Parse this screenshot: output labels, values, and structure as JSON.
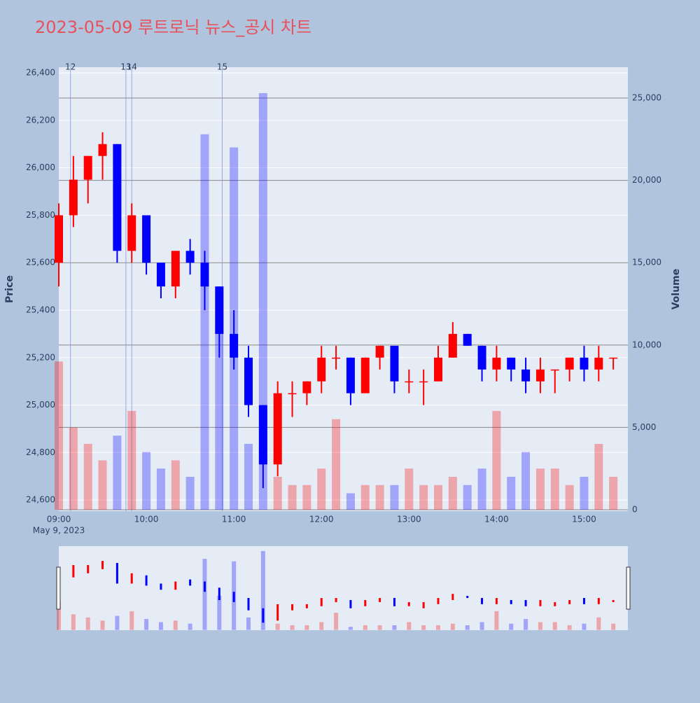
{
  "chart_data": {
    "type": "candlestick",
    "title": "2023-05-09 루트로닉 뉴스_공시 차트",
    "x": [
      "09:00",
      "09:10",
      "09:20",
      "09:30",
      "09:40",
      "09:50",
      "10:00",
      "10:10",
      "10:20",
      "10:30",
      "10:40",
      "10:50",
      "11:00",
      "11:10",
      "11:20",
      "11:30",
      "11:40",
      "11:50",
      "12:00",
      "12:10",
      "12:20",
      "12:30",
      "12:40",
      "12:50",
      "13:00",
      "13:10",
      "13:20",
      "13:30",
      "13:40",
      "13:50",
      "14:00",
      "14:10",
      "14:20",
      "14:30",
      "14:40",
      "14:50",
      "15:00",
      "15:10",
      "15:20"
    ],
    "open": [
      25600,
      25800,
      25950,
      26050,
      26100,
      25650,
      25800,
      25600,
      25500,
      25650,
      25600,
      25500,
      25300,
      25200,
      25000,
      24750,
      25050,
      25050,
      25100,
      25200,
      25200,
      25050,
      25200,
      25250,
      25100,
      25100,
      25100,
      25200,
      25300,
      25250,
      25150,
      25200,
      25150,
      25100,
      25150,
      25150,
      25200,
      25150,
      25200
    ],
    "high": [
      25850,
      26050,
      26050,
      26150,
      26100,
      25850,
      25800,
      25600,
      25650,
      25700,
      25650,
      25500,
      25400,
      25250,
      25000,
      25100,
      25100,
      25100,
      25250,
      25250,
      25200,
      25200,
      25250,
      25250,
      25150,
      25150,
      25250,
      25350,
      25300,
      25250,
      25250,
      25200,
      25200,
      25200,
      25150,
      25200,
      25250,
      25250,
      25200
    ],
    "low": [
      25500,
      25750,
      25850,
      25950,
      25600,
      25600,
      25550,
      25450,
      25450,
      25550,
      25400,
      25200,
      25150,
      24950,
      24650,
      24700,
      24950,
      25000,
      25050,
      25150,
      25000,
      25050,
      25150,
      25050,
      25050,
      25000,
      25100,
      25200,
      25250,
      25100,
      25100,
      25100,
      25050,
      25050,
      25050,
      25100,
      25100,
      25100,
      25150
    ],
    "close": [
      25800,
      25950,
      26050,
      26100,
      25650,
      25800,
      25600,
      25500,
      25650,
      25600,
      25500,
      25300,
      25200,
      25000,
      24750,
      25050,
      25050,
      25100,
      25200,
      25200,
      25050,
      25200,
      25250,
      25100,
      25100,
      25100,
      25200,
      25300,
      25250,
      25150,
      25200,
      25150,
      25100,
      25150,
      25150,
      25200,
      25150,
      25200,
      25200
    ],
    "volume": [
      9000,
      5000,
      4000,
      3000,
      4500,
      6000,
      3500,
      2500,
      3000,
      2000,
      22800,
      11000,
      22000,
      4000,
      25300,
      2000,
      1500,
      1500,
      2500,
      5500,
      1000,
      1500,
      1500,
      1500,
      2500,
      1500,
      1500,
      2000,
      1500,
      2500,
      6000,
      2000,
      3500,
      2500,
      2500,
      1500,
      2000,
      4000,
      2000
    ],
    "increasing_color": "#ff0000",
    "decreasing_color": "#0000ff",
    "y_label": "Price",
    "y2_label": "Volume",
    "ylim": [
      24553,
      26424
    ],
    "yticks": [
      {
        "value": 24600,
        "label": "24,600"
      },
      {
        "value": 24800,
        "label": "24,800"
      },
      {
        "value": 25000,
        "label": "25,000"
      },
      {
        "value": 25200,
        "label": "25,200"
      },
      {
        "value": 25400,
        "label": "25,400"
      },
      {
        "value": 25600,
        "label": "25,600"
      },
      {
        "value": 25800,
        "label": "25,800"
      },
      {
        "value": 26000,
        "label": "26,000"
      },
      {
        "value": 26200,
        "label": "26,200"
      },
      {
        "value": 26400,
        "label": "26,400"
      }
    ],
    "y2lim": [
      -85,
      26871
    ],
    "y2ticks": [
      0,
      {
        "value": 5000,
        "label": "5,000"
      },
      {
        "value": 10000,
        "label": "10,000"
      },
      {
        "value": 15000,
        "label": "15,000"
      },
      {
        "value": 20000,
        "label": "20,000"
      },
      {
        "value": 25000,
        "label": "25,000"
      }
    ],
    "xlim": [
      "09:00",
      "15:30"
    ],
    "xticks": [
      "09:00",
      "10:00",
      "11:00",
      "12:00",
      "13:00",
      "14:00",
      "15:00"
    ],
    "x_date_label": "May 9, 2023",
    "annotations": [
      {
        "x": "09:08",
        "text": "12"
      },
      {
        "x": "09:46",
        "text": "13"
      },
      {
        "x": "09:50",
        "text": "14"
      },
      {
        "x": "10:52",
        "text": "15"
      }
    ]
  }
}
